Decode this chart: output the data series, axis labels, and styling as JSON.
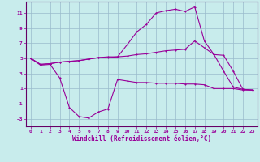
{
  "xlabel": "Windchill (Refroidissement éolien,°C)",
  "bg_color": "#c8ecec",
  "grid_color": "#aaccaa",
  "line_color": "#990099",
  "spine_color": "#660066",
  "xlim": [
    -0.5,
    23.5
  ],
  "ylim": [
    -4,
    12.5
  ],
  "yticks": [
    -3,
    -1,
    1,
    3,
    5,
    7,
    9,
    11
  ],
  "xticks": [
    0,
    1,
    2,
    3,
    4,
    5,
    6,
    7,
    8,
    9,
    10,
    11,
    12,
    13,
    14,
    15,
    16,
    17,
    18,
    19,
    20,
    21,
    22,
    23
  ],
  "curve1_x": [
    0,
    1,
    2,
    3,
    4,
    5,
    6,
    7,
    8,
    9,
    10,
    11,
    12,
    13,
    14,
    15,
    16,
    17,
    18,
    19,
    20,
    21,
    22,
    23
  ],
  "curve1_y": [
    5.0,
    4.2,
    4.3,
    4.5,
    4.6,
    4.7,
    4.9,
    5.1,
    5.2,
    5.2,
    6.8,
    8.5,
    9.5,
    11.0,
    11.3,
    11.5,
    11.2,
    11.8,
    7.3,
    5.5,
    3.3,
    1.2,
    0.9,
    0.8
  ],
  "curve2_x": [
    0,
    1,
    2,
    3,
    4,
    5,
    6,
    7,
    8,
    9,
    10,
    11,
    12,
    13,
    14,
    15,
    16,
    17,
    18,
    19,
    20,
    21,
    22,
    23
  ],
  "curve2_y": [
    5.0,
    4.2,
    4.3,
    4.5,
    4.6,
    4.7,
    4.9,
    5.1,
    5.1,
    5.2,
    5.3,
    5.5,
    5.6,
    5.8,
    6.0,
    6.1,
    6.2,
    7.3,
    6.4,
    5.5,
    5.4,
    3.3,
    0.9,
    0.8
  ],
  "curve3_x": [
    0,
    1,
    2,
    3,
    4,
    5,
    6,
    7,
    8,
    9,
    10,
    11,
    12,
    13,
    14,
    15,
    16,
    17,
    18,
    19,
    20,
    21,
    22,
    23
  ],
  "curve3_y": [
    5.0,
    4.1,
    4.2,
    2.4,
    -1.5,
    -2.7,
    -2.9,
    -2.1,
    -1.7,
    2.2,
    2.0,
    1.8,
    1.8,
    1.7,
    1.7,
    1.7,
    1.6,
    1.6,
    1.5,
    1.0,
    1.0,
    1.0,
    0.8,
    0.8
  ]
}
